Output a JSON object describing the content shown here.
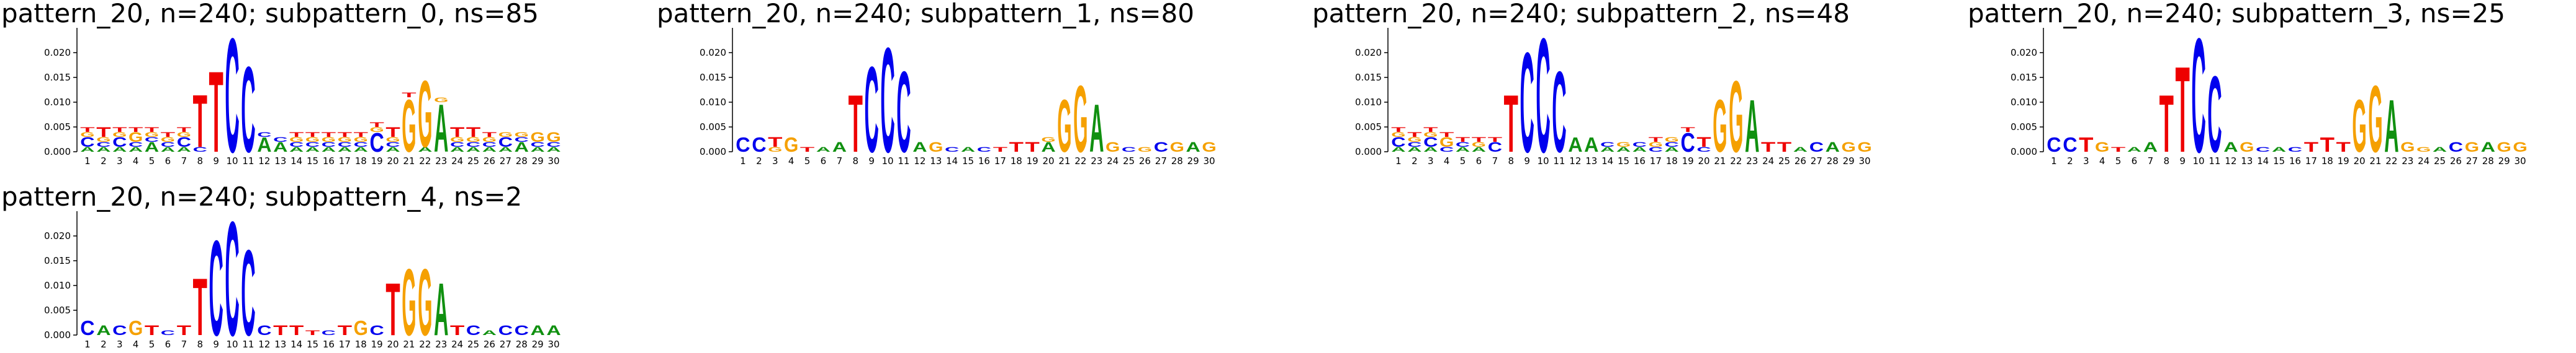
{
  "chart_data": [
    {
      "type": "logo",
      "title": "pattern_20, n=240; subpattern_0, ns=85",
      "categories": [
        1,
        2,
        3,
        4,
        5,
        6,
        7,
        8,
        9,
        10,
        11,
        12,
        13,
        14,
        15,
        16,
        17,
        18,
        19,
        20,
        21,
        22,
        23,
        24,
        25,
        26,
        27,
        28,
        29,
        30
      ],
      "ylim": [
        0,
        0.025
      ],
      "yticks": [
        {
          "value": 0,
          "label": "0.000"
        },
        {
          "value": 0.005,
          "label": "0.005"
        },
        {
          "value": 0.01,
          "label": "0.010"
        },
        {
          "value": 0.015,
          "label": "0.015"
        },
        {
          "value": 0.02,
          "label": "0.020"
        }
      ],
      "series": [
        {
          "name": "A",
          "color": "#109010",
          "values": [
            0.001,
            0.001,
            0.001,
            0.001,
            0.002,
            0.001,
            0.001,
            0,
            0,
            0,
            0,
            0.003,
            0.002,
            0.001,
            0.001,
            0.001,
            0.001,
            0.001,
            0,
            0.001,
            0,
            0.001,
            0.01,
            0.001,
            0.001,
            0.001,
            0.001,
            0.002,
            0.001,
            0.001
          ]
        },
        {
          "name": "C",
          "color": "#0000ee",
          "values": [
            0.002,
            0.001,
            0.002,
            0.001,
            0.001,
            0.001,
            0.002,
            0.001,
            0,
            0.024,
            0.018,
            0.001,
            0.001,
            0.001,
            0.001,
            0.001,
            0.001,
            0.001,
            0.004,
            0.001,
            0,
            0,
            0,
            0.001,
            0.001,
            0.001,
            0.002,
            0.001,
            0.001,
            0.001
          ]
        },
        {
          "name": "G",
          "color": "#f5a000",
          "values": [
            0.001,
            0.001,
            0.001,
            0.002,
            0.001,
            0.001,
            0.001,
            0,
            0,
            0,
            0,
            0,
            0,
            0.001,
            0.001,
            0.001,
            0.001,
            0.001,
            0.001,
            0.001,
            0.011,
            0.014,
            0.001,
            0.001,
            0.001,
            0.001,
            0.001,
            0.001,
            0.002,
            0.002
          ]
        },
        {
          "name": "T",
          "color": "#ee0000",
          "values": [
            0.001,
            0.002,
            0.001,
            0.001,
            0.001,
            0.001,
            0.001,
            0.011,
            0.017,
            0,
            0,
            0,
            0,
            0.001,
            0.001,
            0.001,
            0.001,
            0.001,
            0.001,
            0.002,
            0.001,
            0,
            0,
            0.002,
            0.002,
            0.001,
            0,
            0,
            0,
            0
          ]
        }
      ]
    },
    {
      "type": "logo",
      "title": "pattern_20, n=240; subpattern_1, ns=80",
      "categories": [
        1,
        2,
        3,
        4,
        5,
        6,
        7,
        8,
        9,
        10,
        11,
        12,
        13,
        14,
        15,
        16,
        17,
        18,
        19,
        20,
        21,
        22,
        23,
        24,
        25,
        26,
        27,
        28,
        29,
        30
      ],
      "ylim": [
        0,
        0.025
      ],
      "yticks": [
        {
          "value": 0,
          "label": "0.000"
        },
        {
          "value": 0.005,
          "label": "0.005"
        },
        {
          "value": 0.01,
          "label": "0.010"
        },
        {
          "value": 0.015,
          "label": "0.015"
        },
        {
          "value": 0.02,
          "label": "0.020"
        }
      ],
      "series": [
        {
          "name": "A",
          "color": "#109010",
          "values": [
            0,
            0,
            0,
            0,
            0,
            0.001,
            0.002,
            0,
            0,
            0,
            0,
            0.002,
            0,
            0,
            0.001,
            0,
            0,
            0,
            0,
            0.002,
            0,
            0,
            0.01,
            0,
            0,
            0,
            0,
            0,
            0.002,
            0
          ]
        },
        {
          "name": "C",
          "color": "#0000ee",
          "values": [
            0.003,
            0.003,
            0,
            0,
            0,
            0,
            0,
            0,
            0.018,
            0.022,
            0.017,
            0,
            0,
            0.001,
            0,
            0.001,
            0,
            0,
            0,
            0,
            0,
            0,
            0,
            0,
            0.001,
            0,
            0.002,
            0,
            0,
            0
          ]
        },
        {
          "name": "G",
          "color": "#f5a000",
          "values": [
            0,
            0,
            0.001,
            0.003,
            0,
            0,
            0,
            0,
            0,
            0,
            0,
            0,
            0.002,
            0,
            0,
            0,
            0,
            0,
            0,
            0.001,
            0.011,
            0.014,
            0,
            0.002,
            0,
            0.001,
            0,
            0.002,
            0,
            0.002
          ]
        },
        {
          "name": "T",
          "color": "#ee0000",
          "values": [
            0,
            0,
            0.002,
            0,
            0.001,
            0,
            0,
            0.012,
            0,
            0,
            0,
            0,
            0,
            0,
            0,
            0,
            0.001,
            0.002,
            0.002,
            0,
            0,
            0,
            0,
            0,
            0,
            0,
            0,
            0,
            0,
            0
          ]
        }
      ]
    },
    {
      "type": "logo",
      "title": "pattern_20, n=240; subpattern_2, ns=48",
      "categories": [
        1,
        2,
        3,
        4,
        5,
        6,
        7,
        8,
        9,
        10,
        11,
        12,
        13,
        14,
        15,
        16,
        17,
        18,
        19,
        20,
        21,
        22,
        23,
        24,
        25,
        26,
        27,
        28,
        29,
        30
      ],
      "ylim": [
        0,
        0.025
      ],
      "yticks": [
        {
          "value": 0,
          "label": "0.000"
        },
        {
          "value": 0.005,
          "label": "0.005"
        },
        {
          "value": 0.01,
          "label": "0.010"
        },
        {
          "value": 0.015,
          "label": "0.015"
        },
        {
          "value": 0.02,
          "label": "0.020"
        }
      ],
      "series": [
        {
          "name": "A",
          "color": "#109010",
          "values": [
            0.001,
            0.001,
            0.001,
            0,
            0.001,
            0.001,
            0,
            0,
            0,
            0,
            0,
            0.003,
            0.003,
            0.001,
            0.001,
            0.001,
            0,
            0.001,
            0,
            0,
            0,
            0,
            0.011,
            0,
            0,
            0.001,
            0,
            0.002,
            0,
            0
          ]
        },
        {
          "name": "C",
          "color": "#0000ee",
          "values": [
            0.002,
            0.001,
            0.002,
            0.001,
            0.001,
            0,
            0.002,
            0,
            0.021,
            0.024,
            0.017,
            0,
            0,
            0.001,
            0,
            0.001,
            0.001,
            0.001,
            0.004,
            0.001,
            0,
            0,
            0,
            0,
            0,
            0,
            0.002,
            0,
            0,
            0
          ]
        },
        {
          "name": "G",
          "color": "#f5a000",
          "values": [
            0.001,
            0.001,
            0.001,
            0.002,
            0,
            0.001,
            0,
            0,
            0,
            0,
            0,
            0,
            0,
            0,
            0.001,
            0,
            0.001,
            0.001,
            0,
            0,
            0.011,
            0.015,
            0,
            0,
            0,
            0,
            0,
            0,
            0.002,
            0.002
          ]
        },
        {
          "name": "T",
          "color": "#ee0000",
          "values": [
            0.001,
            0.001,
            0.001,
            0.001,
            0.001,
            0.001,
            0.001,
            0.012,
            0,
            0,
            0,
            0,
            0,
            0,
            0,
            0,
            0.001,
            0,
            0.001,
            0.002,
            0,
            0,
            0,
            0.002,
            0.002,
            0,
            0,
            0,
            0,
            0
          ]
        }
      ]
    },
    {
      "type": "logo",
      "title": "pattern_20, n=240; subpattern_3, ns=25",
      "categories": [
        1,
        2,
        3,
        4,
        5,
        6,
        7,
        8,
        9,
        10,
        11,
        12,
        13,
        14,
        15,
        16,
        17,
        18,
        19,
        20,
        21,
        22,
        23,
        24,
        25,
        26,
        27,
        28,
        29,
        30
      ],
      "ylim": [
        0,
        0.025
      ],
      "yticks": [
        {
          "value": 0,
          "label": "0.000"
        },
        {
          "value": 0.005,
          "label": "0.005"
        },
        {
          "value": 0.01,
          "label": "0.010"
        },
        {
          "value": 0.015,
          "label": "0.015"
        },
        {
          "value": 0.02,
          "label": "0.020"
        }
      ],
      "series": [
        {
          "name": "A",
          "color": "#109010",
          "values": [
            0,
            0,
            0,
            0,
            0,
            0.001,
            0.002,
            0,
            0,
            0,
            0,
            0.002,
            0,
            0,
            0.001,
            0,
            0,
            0,
            0,
            0,
            0,
            0.011,
            0,
            0,
            0.001,
            0,
            0,
            0.002,
            0,
            0
          ]
        },
        {
          "name": "C",
          "color": "#0000ee",
          "values": [
            0.003,
            0.003,
            0,
            0,
            0,
            0,
            0,
            0,
            0,
            0.024,
            0.016,
            0,
            0,
            0.001,
            0,
            0.001,
            0,
            0,
            0,
            0,
            0,
            0,
            0,
            0,
            0,
            0.002,
            0,
            0,
            0,
            0
          ]
        },
        {
          "name": "G",
          "color": "#f5a000",
          "values": [
            0,
            0,
            0,
            0.002,
            0,
            0,
            0,
            0,
            0,
            0,
            0,
            0,
            0.002,
            0,
            0,
            0,
            0,
            0,
            0,
            0.011,
            0.014,
            0,
            0.002,
            0.001,
            0,
            0,
            0.002,
            0,
            0.002,
            0.002
          ]
        },
        {
          "name": "T",
          "color": "#ee0000",
          "values": [
            0,
            0,
            0.003,
            0,
            0.001,
            0,
            0,
            0.012,
            0.018,
            0,
            0,
            0,
            0,
            0,
            0,
            0,
            0.002,
            0.003,
            0.002,
            0,
            0,
            0,
            0,
            0,
            0,
            0,
            0,
            0,
            0,
            0
          ]
        }
      ]
    },
    {
      "type": "logo",
      "title": "pattern_20, n=240; subpattern_4, ns=2",
      "categories": [
        1,
        2,
        3,
        4,
        5,
        6,
        7,
        8,
        9,
        10,
        11,
        12,
        13,
        14,
        15,
        16,
        17,
        18,
        19,
        20,
        21,
        22,
        23,
        24,
        25,
        26,
        27,
        28,
        29,
        30
      ],
      "ylim": [
        0,
        0.025
      ],
      "yticks": [
        {
          "value": 0,
          "label": "0.000"
        },
        {
          "value": 0.005,
          "label": "0.005"
        },
        {
          "value": 0.01,
          "label": "0.010"
        },
        {
          "value": 0.015,
          "label": "0.015"
        },
        {
          "value": 0.02,
          "label": "0.020"
        }
      ],
      "series": [
        {
          "name": "A",
          "color": "#109010",
          "values": [
            0,
            0.002,
            0,
            0,
            0,
            0,
            0,
            0,
            0,
            0,
            0,
            0,
            0,
            0,
            0,
            0,
            0,
            0,
            0,
            0,
            0,
            0,
            0.011,
            0,
            0,
            0.001,
            0,
            0,
            0.002,
            0.002
          ]
        },
        {
          "name": "C",
          "color": "#0000ee",
          "values": [
            0.003,
            0,
            0.002,
            0,
            0,
            0.001,
            0,
            0,
            0.02,
            0.024,
            0.018,
            0.002,
            0,
            0,
            0,
            0.001,
            0,
            0,
            0.002,
            0,
            0,
            0,
            0,
            0,
            0.002,
            0,
            0.002,
            0.002,
            0,
            0
          ]
        },
        {
          "name": "G",
          "color": "#f5a000",
          "values": [
            0,
            0,
            0,
            0.003,
            0,
            0,
            0,
            0,
            0,
            0,
            0,
            0,
            0,
            0,
            0,
            0,
            0,
            0.003,
            0,
            0,
            0.014,
            0.014,
            0,
            0,
            0,
            0,
            0,
            0,
            0,
            0
          ]
        },
        {
          "name": "T",
          "color": "#ee0000",
          "values": [
            0,
            0,
            0,
            0,
            0.002,
            0,
            0.002,
            0.012,
            0,
            0,
            0,
            0,
            0.002,
            0.002,
            0.001,
            0,
            0.002,
            0,
            0,
            0.011,
            0,
            0,
            0,
            0.002,
            0,
            0,
            0,
            0,
            0,
            0
          ]
        }
      ]
    }
  ]
}
